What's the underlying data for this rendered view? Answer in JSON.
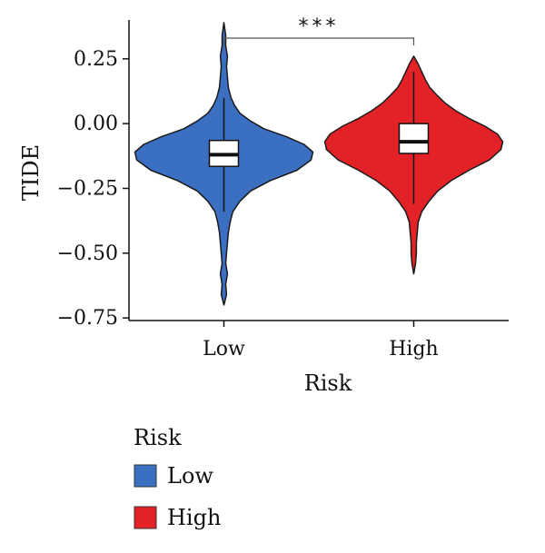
{
  "chart_data": {
    "type": "violin",
    "xlabel": "Risk",
    "ylabel": "TIDE",
    "ylim": [
      -0.76,
      0.4
    ],
    "yticks": [
      0.25,
      0.0,
      -0.25,
      -0.5,
      -0.75
    ],
    "ytick_labels": [
      "0.25",
      "0.00",
      "−0.25",
      "−0.50",
      "−0.75"
    ],
    "categories": [
      "Low",
      "High"
    ],
    "significance": "***",
    "legend": {
      "title": "Risk",
      "position": "bottom-left"
    },
    "series": [
      {
        "name": "Low",
        "color": "#3b6fc2",
        "min": -0.7,
        "max": 0.39,
        "q1": -0.165,
        "median": -0.12,
        "q3": -0.065,
        "whisker_low": -0.34,
        "whisker_high": 0.1,
        "density": [
          [
            -0.7,
            0.0
          ],
          [
            -0.66,
            0.03
          ],
          [
            -0.62,
            0.02
          ],
          [
            -0.58,
            0.04
          ],
          [
            -0.54,
            0.02
          ],
          [
            -0.5,
            0.03
          ],
          [
            -0.46,
            0.04
          ],
          [
            -0.42,
            0.05
          ],
          [
            -0.38,
            0.07
          ],
          [
            -0.34,
            0.1
          ],
          [
            -0.3,
            0.18
          ],
          [
            -0.26,
            0.3
          ],
          [
            -0.22,
            0.52
          ],
          [
            -0.18,
            0.82
          ],
          [
            -0.14,
            0.98
          ],
          [
            -0.11,
            1.0
          ],
          [
            -0.08,
            0.9
          ],
          [
            -0.05,
            0.7
          ],
          [
            -0.02,
            0.45
          ],
          [
            0.01,
            0.3
          ],
          [
            0.04,
            0.18
          ],
          [
            0.07,
            0.12
          ],
          [
            0.1,
            0.08
          ],
          [
            0.14,
            0.05
          ],
          [
            0.18,
            0.04
          ],
          [
            0.22,
            0.03
          ],
          [
            0.26,
            0.04
          ],
          [
            0.3,
            0.02
          ],
          [
            0.34,
            0.02
          ],
          [
            0.39,
            0.0
          ]
        ]
      },
      {
        "name": "High",
        "color": "#e32227",
        "min": -0.58,
        "max": 0.26,
        "q1": -0.115,
        "median": -0.07,
        "q3": 0.0,
        "whisker_low": -0.31,
        "whisker_high": 0.2,
        "density": [
          [
            -0.58,
            0.0
          ],
          [
            -0.54,
            0.02
          ],
          [
            -0.5,
            0.03
          ],
          [
            -0.46,
            0.03
          ],
          [
            -0.42,
            0.04
          ],
          [
            -0.38,
            0.05
          ],
          [
            -0.34,
            0.09
          ],
          [
            -0.3,
            0.17
          ],
          [
            -0.26,
            0.27
          ],
          [
            -0.22,
            0.42
          ],
          [
            -0.18,
            0.62
          ],
          [
            -0.14,
            0.85
          ],
          [
            -0.1,
            0.98
          ],
          [
            -0.07,
            1.0
          ],
          [
            -0.04,
            0.94
          ],
          [
            -0.01,
            0.8
          ],
          [
            0.02,
            0.62
          ],
          [
            0.05,
            0.47
          ],
          [
            0.08,
            0.35
          ],
          [
            0.11,
            0.26
          ],
          [
            0.14,
            0.18
          ],
          [
            0.17,
            0.13
          ],
          [
            0.2,
            0.09
          ],
          [
            0.23,
            0.05
          ],
          [
            0.26,
            0.0
          ]
        ]
      }
    ]
  }
}
